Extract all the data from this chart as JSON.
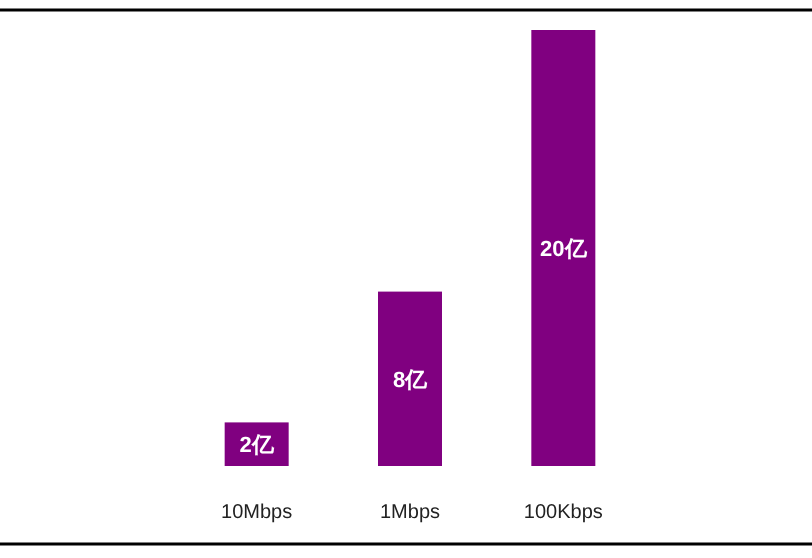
{
  "chart_data": {
    "type": "bar",
    "categories": [
      "10Mbps",
      "1Mbps",
      "100Kbps"
    ],
    "values": [
      2,
      8,
      20
    ],
    "color": "#800080",
    "value_labels": [
      "2亿",
      "8亿",
      "20亿"
    ]
  }
}
